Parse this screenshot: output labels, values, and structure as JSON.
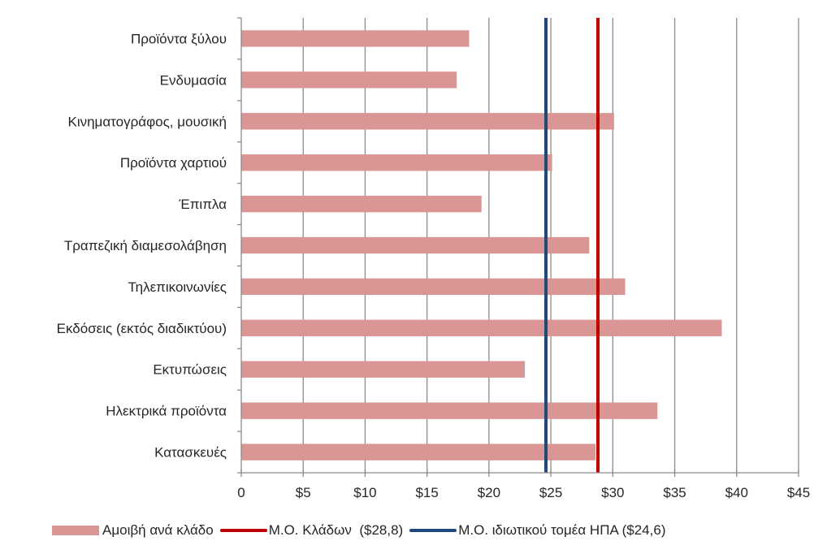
{
  "chart_data": {
    "type": "bar",
    "orientation": "horizontal",
    "title": "",
    "xlabel": "",
    "ylabel": "",
    "xlim": [
      0,
      45
    ],
    "x_ticks": [
      0,
      5,
      10,
      15,
      20,
      25,
      30,
      35,
      40,
      45
    ],
    "x_tick_labels": [
      "0",
      "$5",
      "$10",
      "$15",
      "$20",
      "$25",
      "$30",
      "$35",
      "$40",
      "$45"
    ],
    "grid": "vertical",
    "categories": [
      "Προϊόντα ξύλου",
      "Ενδυμασία",
      "Κινηματογράφος, μουσική",
      "Προϊόντα χαρτιού",
      "Έπιπλα",
      "Τραπεζική διαμεσολάβηση",
      "Τηλεπικοινωνίες",
      "Εκδόσεις (εκτός διαδικτύου)",
      "Εκτυπώσεις",
      "Ηλεκτρικά προϊόντα",
      "Κατασκευές"
    ],
    "series": [
      {
        "name": "Αμοιβή ανά κλάδο",
        "type": "bar",
        "color": "#d99694",
        "values": [
          18.4,
          17.4,
          30.1,
          25.1,
          19.4,
          28.1,
          31.0,
          38.8,
          22.9,
          33.6,
          28.6
        ]
      },
      {
        "name": "Μ.Ο. Κλάδων ($28,8)",
        "type": "reference-line",
        "color": "#c00000",
        "value": 28.8
      },
      {
        "name": "Μ.Ο. ιδιωτικού τομέα ΗΠΑ ($24,6)",
        "type": "reference-line",
        "color": "#1f497d",
        "value": 24.6
      }
    ],
    "legend": {
      "position": "bottom",
      "entries": [
        "Αμοιβή ανά κλάδο",
        "Μ.Ο. Κλάδων  ($28,8)",
        "Μ.Ο. ιδιωτικού τομέα ΗΠΑ ($24,6)"
      ]
    }
  }
}
